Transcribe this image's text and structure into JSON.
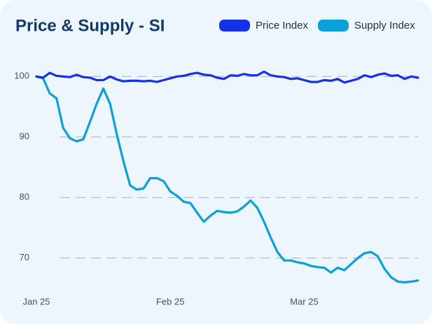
{
  "chart_data": {
    "type": "line",
    "title": "Price & Supply - SI",
    "categories": [
      "Jan 25",
      null,
      null,
      null,
      null,
      null,
      null,
      null,
      null,
      null,
      null,
      null,
      null,
      null,
      null,
      null,
      null,
      null,
      null,
      null,
      "Feb 25",
      null,
      null,
      null,
      null,
      null,
      null,
      null,
      null,
      null,
      null,
      null,
      null,
      null,
      null,
      null,
      null,
      null,
      null,
      null,
      "Mar 25",
      null,
      null,
      null,
      null,
      null,
      null,
      null,
      null,
      null,
      null,
      null,
      null,
      null,
      null,
      null,
      null,
      null
    ],
    "series": [
      {
        "name": "Price Index",
        "color": "#1630e8",
        "values": [
          100,
          99.8,
          100.6,
          100.1,
          100,
          99.9,
          100.3,
          99.9,
          99.8,
          99.4,
          99.4,
          100,
          99.5,
          99.2,
          99.3,
          99.3,
          99.2,
          99.3,
          99.1,
          99.4,
          99.7,
          100,
          100.1,
          100.4,
          100.6,
          100.3,
          100.2,
          99.8,
          99.6,
          100.2,
          100.1,
          100.4,
          100.2,
          100.2,
          100.8,
          100.2,
          100,
          99.9,
          99.6,
          99.7,
          99.4,
          99.1,
          99.1,
          99.4,
          99.3,
          99.6,
          99,
          99.3,
          99.6,
          100.2,
          99.9,
          100.3,
          100.5,
          100.1,
          100.2,
          99.6,
          100,
          99.8
        ]
      },
      {
        "name": "Supply Index",
        "color": "#0aa0dc",
        "values": [
          100,
          99.7,
          97.2,
          96.4,
          91.5,
          89.8,
          89.3,
          89.6,
          92.5,
          95.5,
          98,
          95.5,
          90.5,
          86,
          82,
          81.3,
          81.5,
          83.2,
          83.2,
          82.7,
          81,
          80.3,
          79.3,
          79.1,
          77.5,
          76,
          77,
          77.8,
          77.6,
          77.5,
          77.7,
          78.5,
          79.5,
          78.3,
          76,
          73.4,
          71,
          69.6,
          69.6,
          69.3,
          69.1,
          68.7,
          68.5,
          68.4,
          67.6,
          68.4,
          68,
          69,
          70,
          70.8,
          71,
          70.3,
          68.2,
          66.8,
          66.1,
          66,
          66.1,
          66.3
        ]
      }
    ],
    "ylim": [
      65,
      102
    ],
    "yticks": [
      70,
      80,
      90,
      100
    ],
    "grid": true
  }
}
